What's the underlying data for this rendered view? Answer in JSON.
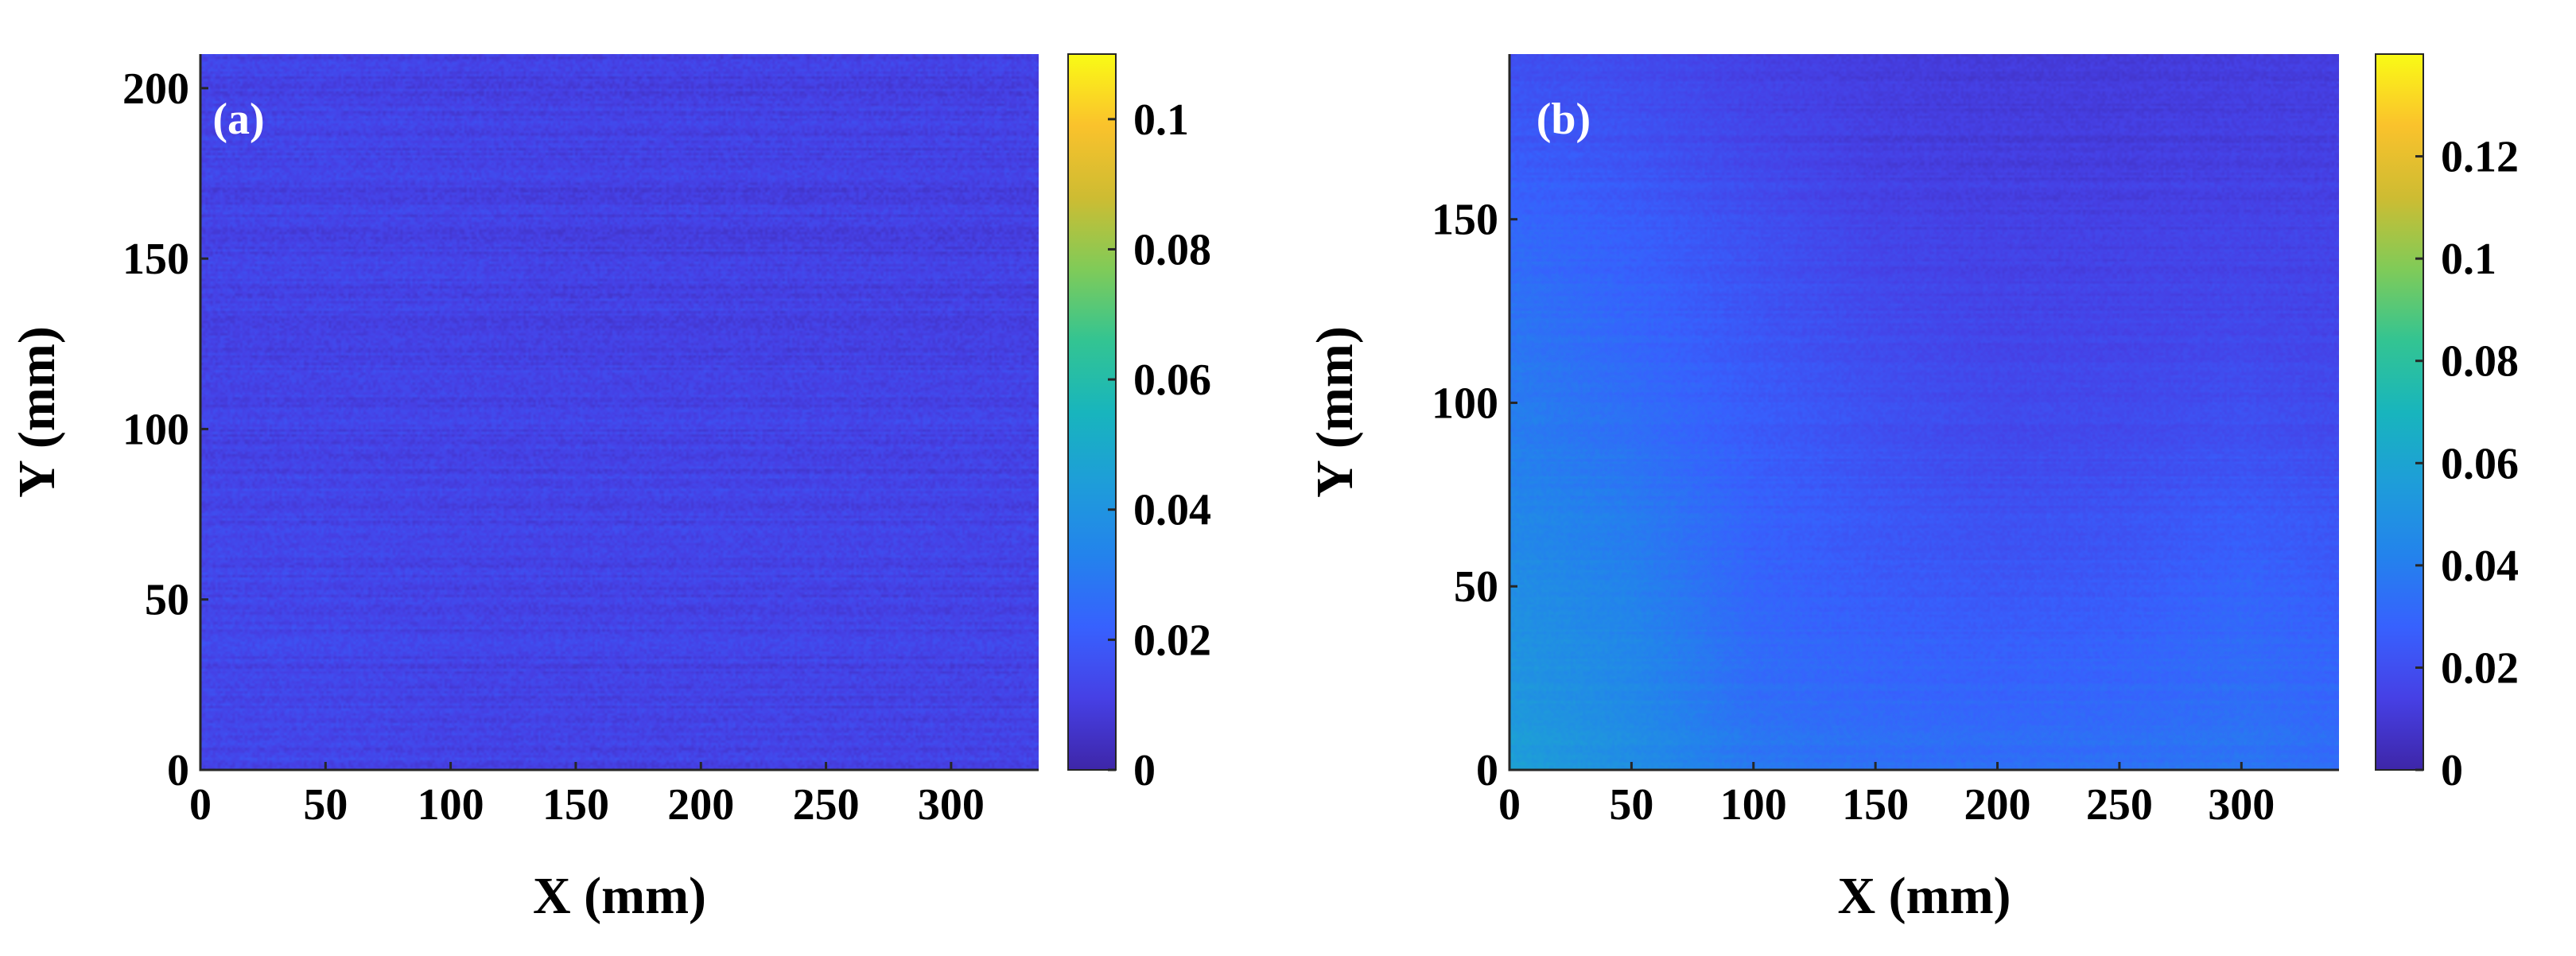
{
  "chart_data": [
    {
      "type": "heatmap",
      "panel_label": "(a)",
      "xlabel": "X (mm)",
      "ylabel": "Y (mm)",
      "xlim": [
        0,
        335
      ],
      "ylim": [
        0,
        210
      ],
      "xticks": [
        0,
        50,
        100,
        150,
        200,
        250,
        300
      ],
      "yticks": [
        0,
        50,
        100,
        150,
        200
      ],
      "colorbar": {
        "colormap": "parula",
        "clim": [
          0,
          0.11
        ],
        "ticks": [
          0,
          0.02,
          0.04,
          0.06,
          0.08,
          0.1
        ]
      },
      "field": {
        "description": "nearly uniform low values with horizontal striping",
        "mean_value": 0.012,
        "noise_amplitude": 0.006,
        "x_grid": [
          0,
          50,
          100,
          150,
          200,
          250,
          300,
          335
        ],
        "y_grid": [
          0,
          50,
          100,
          150,
          210
        ],
        "values": [
          [
            0.013,
            0.013,
            0.012,
            0.012,
            0.012,
            0.012,
            0.012,
            0.012
          ],
          [
            0.013,
            0.013,
            0.012,
            0.012,
            0.012,
            0.012,
            0.012,
            0.012
          ],
          [
            0.012,
            0.012,
            0.012,
            0.012,
            0.012,
            0.012,
            0.012,
            0.012
          ],
          [
            0.012,
            0.012,
            0.012,
            0.011,
            0.011,
            0.011,
            0.011,
            0.011
          ],
          [
            0.012,
            0.012,
            0.011,
            0.011,
            0.011,
            0.011,
            0.011,
            0.011
          ]
        ]
      }
    },
    {
      "type": "heatmap",
      "panel_label": "(b)",
      "xlabel": "X (mm)",
      "ylabel": "Y (mm)",
      "xlim": [
        0,
        340
      ],
      "ylim": [
        0,
        195
      ],
      "xticks": [
        0,
        50,
        100,
        150,
        200,
        250,
        300
      ],
      "yticks": [
        0,
        50,
        100,
        150
      ],
      "colorbar": {
        "colormap": "parula",
        "clim": [
          0,
          0.14
        ],
        "ticks": [
          0,
          0.02,
          0.04,
          0.06,
          0.08,
          0.1,
          0.12
        ]
      },
      "field": {
        "description": "spatially varying; highest near the bottom-left corner, lowest in the upper-middle region",
        "mean_value": 0.025,
        "noise_amplitude": 0.005,
        "x_grid": [
          0,
          50,
          100,
          150,
          200,
          250,
          300,
          340
        ],
        "y_grid": [
          0,
          25,
          50,
          75,
          100,
          125,
          150,
          175,
          195
        ],
        "values": [
          [
            0.058,
            0.048,
            0.038,
            0.035,
            0.034,
            0.035,
            0.037,
            0.033
          ],
          [
            0.052,
            0.045,
            0.033,
            0.03,
            0.029,
            0.03,
            0.033,
            0.03
          ],
          [
            0.048,
            0.042,
            0.03,
            0.026,
            0.024,
            0.025,
            0.03,
            0.026
          ],
          [
            0.043,
            0.038,
            0.028,
            0.023,
            0.02,
            0.021,
            0.024,
            0.022
          ],
          [
            0.04,
            0.033,
            0.026,
            0.021,
            0.018,
            0.018,
            0.02,
            0.018
          ],
          [
            0.036,
            0.03,
            0.023,
            0.018,
            0.016,
            0.016,
            0.017,
            0.016
          ],
          [
            0.03,
            0.026,
            0.02,
            0.015,
            0.014,
            0.014,
            0.015,
            0.015
          ],
          [
            0.024,
            0.021,
            0.016,
            0.013,
            0.012,
            0.012,
            0.013,
            0.013
          ],
          [
            0.02,
            0.018,
            0.014,
            0.012,
            0.011,
            0.011,
            0.012,
            0.012
          ]
        ]
      }
    }
  ]
}
